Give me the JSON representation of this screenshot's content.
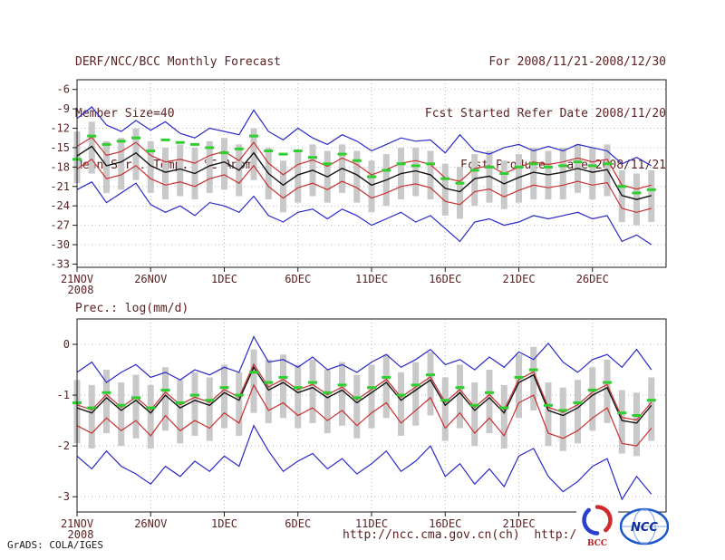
{
  "header": {
    "title": "DERF/NCC/BCC Monthly Forecast",
    "member_size": "Member Size=40",
    "for_range": "For 2008/11/21-2008/12/30",
    "refer_date": "Fcst Started Refer Date 2008/11/20",
    "produced_date": "Fcst Produced Date 2008/11/21"
  },
  "footer": {
    "grads_credit": "GrADS: COLA/IGES",
    "urls": "http://ncc.cma.gov.cn(ch)  http://bcc.c",
    "bcc_label": "BCC",
    "ncc_label": "NCC"
  },
  "chart_data": [
    {
      "type": "line",
      "name": "surface-temp-anomaly",
      "title": "Mean Surf. Temp.: °C Anom.",
      "xlabel": "",
      "ylabel": "",
      "xlim": [
        0,
        40
      ],
      "ylim": [
        -33.5,
        -4.5
      ],
      "yticks": [
        -6,
        -9,
        -12,
        -15,
        -18,
        -21,
        -24,
        -27,
        -30,
        -33
      ],
      "xticks": [
        {
          "pos": 0,
          "label": "21NOV",
          "sublabel": "2008"
        },
        {
          "pos": 5,
          "label": "26NOV"
        },
        {
          "pos": 10,
          "label": "1DEC"
        },
        {
          "pos": 15,
          "label": "6DEC"
        },
        {
          "pos": 20,
          "label": "11DEC"
        },
        {
          "pos": 25,
          "label": "16DEC"
        },
        {
          "pos": 30,
          "label": "21DEC"
        },
        {
          "pos": 35,
          "label": "26DEC"
        }
      ],
      "grid": true,
      "grid_color": "#b8b8b8",
      "bars": {
        "name": "ensemble-spread",
        "color": "#c9c9c9",
        "hi": [
          -12.5,
          -11.0,
          -14.0,
          -13.5,
          -12.0,
          -14.0,
          -15.0,
          -14.5,
          -15.0,
          -14.0,
          -13.5,
          -14.5,
          -12.0,
          -15.0,
          -17.0,
          -15.5,
          -14.5,
          -15.5,
          -14.5,
          -15.5,
          -17.0,
          -16.0,
          -15.0,
          -15.0,
          -15.5,
          -17.5,
          -18.0,
          -16.0,
          -15.5,
          -17.0,
          -16.0,
          -15.0,
          -15.5,
          -15.0,
          -14.5,
          -15.0,
          -14.5,
          -18.5,
          -19.0,
          -18.5
        ],
        "lo": [
          -20.5,
          -19.0,
          -22.0,
          -21.5,
          -20.0,
          -22.0,
          -23.0,
          -22.5,
          -23.0,
          -22.0,
          -21.5,
          -22.5,
          -20.0,
          -23.0,
          -25.0,
          -23.5,
          -22.5,
          -23.5,
          -22.0,
          -23.5,
          -25.0,
          -24.0,
          -23.0,
          -22.5,
          -23.0,
          -25.5,
          -26.0,
          -24.0,
          -23.5,
          -24.5,
          -23.5,
          -23.0,
          -23.0,
          -23.0,
          -22.0,
          -23.0,
          -22.5,
          -26.5,
          -27.0,
          -26.5
        ]
      },
      "series": [
        {
          "name": "ensemble-max",
          "color": "#2929c8",
          "width": 1.2,
          "values": [
            -10.5,
            -8.7,
            -11.5,
            -12.5,
            -10.8,
            -12.3,
            -11.0,
            -12.8,
            -13.5,
            -12.0,
            -12.5,
            -13.0,
            -9.2,
            -12.5,
            -13.8,
            -12.0,
            -13.5,
            -14.5,
            -13.0,
            -14.0,
            -15.5,
            -14.5,
            -13.5,
            -14.0,
            -13.8,
            -15.8,
            -13.0,
            -15.5,
            -16.0,
            -15.0,
            -14.5,
            -15.5,
            -14.8,
            -15.5,
            -14.5,
            -15.0,
            -15.5,
            -17.5,
            -16.5,
            -17.8
          ]
        },
        {
          "name": "upper-quartile",
          "color": "#c83232",
          "width": 1.2,
          "values": [
            -14.8,
            -13.4,
            -16.2,
            -15.6,
            -14.2,
            -16.2,
            -17.2,
            -16.8,
            -17.4,
            -16.2,
            -15.6,
            -17.0,
            -14.2,
            -17.4,
            -19.2,
            -17.6,
            -16.9,
            -17.9,
            -16.6,
            -17.6,
            -19.2,
            -18.4,
            -17.4,
            -17.0,
            -17.6,
            -19.7,
            -20.2,
            -18.2,
            -17.8,
            -19.0,
            -18.0,
            -17.2,
            -17.6,
            -17.2,
            -16.6,
            -17.2,
            -16.8,
            -20.8,
            -21.4,
            -20.8
          ]
        },
        {
          "name": "ensemble-mean",
          "color": "#141414",
          "width": 1.4,
          "values": [
            -16.3,
            -14.8,
            -17.8,
            -17.2,
            -15.8,
            -17.8,
            -18.8,
            -18.3,
            -19.0,
            -17.8,
            -17.2,
            -18.5,
            -15.8,
            -19.0,
            -20.8,
            -19.2,
            -18.5,
            -19.5,
            -18.2,
            -19.2,
            -20.8,
            -20.0,
            -19.0,
            -18.6,
            -19.2,
            -21.3,
            -21.8,
            -19.8,
            -19.4,
            -20.6,
            -19.6,
            -18.8,
            -19.2,
            -18.8,
            -18.2,
            -18.8,
            -18.4,
            -22.4,
            -23.0,
            -22.4
          ]
        },
        {
          "name": "lower-quartile",
          "color": "#c83232",
          "width": 1.2,
          "values": [
            -18.3,
            -16.8,
            -19.8,
            -19.2,
            -17.8,
            -19.8,
            -20.8,
            -20.3,
            -21.0,
            -19.8,
            -19.2,
            -20.5,
            -17.8,
            -21.0,
            -22.8,
            -21.2,
            -20.5,
            -21.5,
            -20.2,
            -21.2,
            -22.8,
            -22.0,
            -21.0,
            -20.6,
            -21.2,
            -23.3,
            -23.8,
            -21.8,
            -21.4,
            -22.6,
            -21.6,
            -20.8,
            -21.2,
            -20.8,
            -20.2,
            -20.8,
            -20.4,
            -24.4,
            -25.0,
            -24.4
          ]
        },
        {
          "name": "ensemble-min",
          "color": "#2929c8",
          "width": 1.2,
          "values": [
            -21.5,
            -20.3,
            -23.5,
            -22.0,
            -20.5,
            -23.8,
            -25.0,
            -24.0,
            -25.5,
            -23.5,
            -24.0,
            -25.0,
            -22.5,
            -25.5,
            -26.5,
            -25.0,
            -24.5,
            -26.0,
            -24.5,
            -25.5,
            -27.0,
            -26.0,
            -25.0,
            -26.5,
            -25.5,
            -27.5,
            -29.5,
            -26.5,
            -26.0,
            -27.0,
            -26.5,
            -25.5,
            -26.0,
            -25.5,
            -25.0,
            -26.0,
            -25.5,
            -29.5,
            -28.5,
            -30.0
          ]
        }
      ],
      "dash_series": {
        "name": "highlight-median",
        "color": "#30cf30",
        "values": [
          -16.8,
          -13.2,
          -14.5,
          -14.0,
          -13.5,
          -15.5,
          -13.8,
          -14.2,
          -14.5,
          -15.0,
          -15.8,
          -15.2,
          -13.2,
          -15.5,
          -16.0,
          -15.5,
          -16.5,
          -17.5,
          -16.0,
          -17.0,
          -19.5,
          -18.5,
          -17.5,
          -17.8,
          -17.5,
          -19.8,
          -20.5,
          -18.5,
          -18.0,
          -19.0,
          -18.0,
          -17.5,
          -18.0,
          -17.8,
          -17.2,
          -17.8,
          -17.5,
          -21.0,
          -22.0,
          -21.5
        ]
      }
    },
    {
      "type": "line",
      "name": "precipitation",
      "title": "Prec.: log(mm/d)",
      "xlabel": "",
      "ylabel": "",
      "xlim": [
        0,
        40
      ],
      "ylim": [
        -3.3,
        0.5
      ],
      "yticks": [
        0,
        -1,
        -2,
        -3
      ],
      "xticks": [
        {
          "pos": 0,
          "label": "21NOV",
          "sublabel": "2008"
        },
        {
          "pos": 5,
          "label": "26NOV"
        },
        {
          "pos": 10,
          "label": "1DEC"
        },
        {
          "pos": 15,
          "label": "6DEC"
        },
        {
          "pos": 20,
          "label": "11DEC"
        },
        {
          "pos": 25,
          "label": "16DEC"
        },
        {
          "pos": 30,
          "label": "21DEC"
        },
        {
          "pos": 35,
          "label": "26DEC"
        }
      ],
      "grid": true,
      "grid_color": "#b8b8b8",
      "bars": {
        "name": "ensemble-spread",
        "color": "#c9c9c9",
        "hi": [
          -0.7,
          -0.8,
          -0.5,
          -0.75,
          -0.6,
          -0.8,
          -0.45,
          -0.7,
          -0.55,
          -0.65,
          -0.4,
          -0.55,
          -0.1,
          -0.3,
          -0.2,
          -0.4,
          -0.3,
          -0.5,
          -0.35,
          -0.6,
          -0.4,
          -0.2,
          -0.55,
          -0.35,
          -0.15,
          -0.65,
          -0.4,
          -0.75,
          -0.5,
          -0.8,
          -0.2,
          -0.05,
          -0.75,
          -0.85,
          -0.7,
          -0.45,
          -0.3,
          -0.9,
          -0.95,
          -0.65
        ],
        "lo": [
          -1.95,
          -2.05,
          -1.75,
          -2.0,
          -1.85,
          -2.05,
          -1.7,
          -1.95,
          -1.8,
          -1.9,
          -1.65,
          -1.8,
          -1.35,
          -1.55,
          -1.45,
          -1.65,
          -1.55,
          -1.75,
          -1.6,
          -1.85,
          -1.65,
          -1.45,
          -1.8,
          -1.6,
          -1.4,
          -1.9,
          -1.65,
          -2.0,
          -1.75,
          -2.05,
          -1.45,
          -1.3,
          -2.0,
          -2.1,
          -1.95,
          -1.7,
          -1.55,
          -2.15,
          -2.2,
          -1.9
        ]
      },
      "series": [
        {
          "name": "ensemble-max",
          "color": "#2929c8",
          "width": 1.2,
          "values": [
            -0.55,
            -0.35,
            -0.75,
            -0.55,
            -0.4,
            -0.65,
            -0.55,
            -0.7,
            -0.5,
            -0.6,
            -0.45,
            -0.55,
            0.15,
            -0.35,
            -0.3,
            -0.45,
            -0.25,
            -0.5,
            -0.4,
            -0.55,
            -0.35,
            -0.2,
            -0.45,
            -0.3,
            -0.1,
            -0.4,
            -0.3,
            -0.5,
            -0.25,
            -0.45,
            -0.15,
            -0.3,
            0.02,
            -0.35,
            -0.55,
            -0.3,
            -0.2,
            -0.45,
            -0.1,
            -0.5
          ]
        },
        {
          "name": "upper-quartile",
          "color": "#c83232",
          "width": 1.2,
          "values": [
            -1.19,
            -1.29,
            -0.99,
            -1.24,
            -1.04,
            -1.29,
            -0.94,
            -1.19,
            -1.04,
            -1.14,
            -0.89,
            -1.04,
            -0.39,
            -0.84,
            -0.69,
            -0.89,
            -0.79,
            -0.99,
            -0.84,
            -1.09,
            -0.89,
            -0.69,
            -1.04,
            -0.84,
            -0.64,
            -1.14,
            -0.89,
            -1.24,
            -0.99,
            -1.29,
            -0.69,
            -0.54,
            -1.24,
            -1.34,
            -1.19,
            -0.94,
            -0.79,
            -1.44,
            -1.49,
            -1.14
          ]
        },
        {
          "name": "ensemble-mean",
          "color": "#141414",
          "width": 1.4,
          "values": [
            -1.25,
            -1.35,
            -1.05,
            -1.3,
            -1.1,
            -1.35,
            -1.0,
            -1.25,
            -1.1,
            -1.2,
            -0.95,
            -1.1,
            -0.45,
            -0.9,
            -0.75,
            -0.95,
            -0.85,
            -1.05,
            -0.9,
            -1.15,
            -0.95,
            -0.75,
            -1.1,
            -0.9,
            -0.7,
            -1.2,
            -0.95,
            -1.3,
            -1.05,
            -1.35,
            -0.75,
            -0.6,
            -1.3,
            -1.4,
            -1.25,
            -1.0,
            -0.85,
            -1.5,
            -1.55,
            -1.2
          ]
        },
        {
          "name": "lower-quartile",
          "color": "#c83232",
          "width": 1.2,
          "values": [
            -1.6,
            -1.75,
            -1.45,
            -1.7,
            -1.5,
            -1.8,
            -1.4,
            -1.7,
            -1.5,
            -1.65,
            -1.35,
            -1.55,
            -0.8,
            -1.3,
            -1.15,
            -1.4,
            -1.25,
            -1.5,
            -1.3,
            -1.6,
            -1.35,
            -1.15,
            -1.55,
            -1.3,
            -1.05,
            -1.65,
            -1.35,
            -1.75,
            -1.45,
            -1.8,
            -1.15,
            -1.0,
            -1.75,
            -1.85,
            -1.7,
            -1.45,
            -1.25,
            -1.95,
            -2.0,
            -1.65
          ]
        },
        {
          "name": "ensemble-min",
          "color": "#2929c8",
          "width": 1.2,
          "values": [
            -2.2,
            -2.45,
            -2.1,
            -2.4,
            -2.55,
            -2.75,
            -2.4,
            -2.6,
            -2.3,
            -2.5,
            -2.2,
            -2.4,
            -1.6,
            -2.1,
            -2.5,
            -2.3,
            -2.15,
            -2.45,
            -2.25,
            -2.55,
            -2.35,
            -2.1,
            -2.5,
            -2.3,
            -2.0,
            -2.6,
            -2.35,
            -2.75,
            -2.45,
            -2.8,
            -2.2,
            -2.05,
            -2.6,
            -2.9,
            -2.7,
            -2.4,
            -2.25,
            -3.05,
            -2.6,
            -2.95
          ]
        }
      ],
      "dash_series": {
        "name": "highlight-median",
        "color": "#30cf30",
        "values": [
          -1.15,
          -1.25,
          -0.95,
          -1.2,
          -1.05,
          -1.25,
          -0.9,
          -1.15,
          -1.0,
          -1.1,
          -0.85,
          -1.0,
          -0.55,
          -0.75,
          -0.65,
          -0.85,
          -0.75,
          -0.95,
          -0.8,
          -1.05,
          -0.85,
          -0.65,
          -1.0,
          -0.8,
          -0.6,
          -1.1,
          -0.85,
          -1.2,
          -0.95,
          -1.25,
          -0.65,
          -0.5,
          -1.2,
          -1.3,
          -1.15,
          -0.9,
          -0.75,
          -1.35,
          -1.4,
          -1.1
        ]
      }
    }
  ]
}
